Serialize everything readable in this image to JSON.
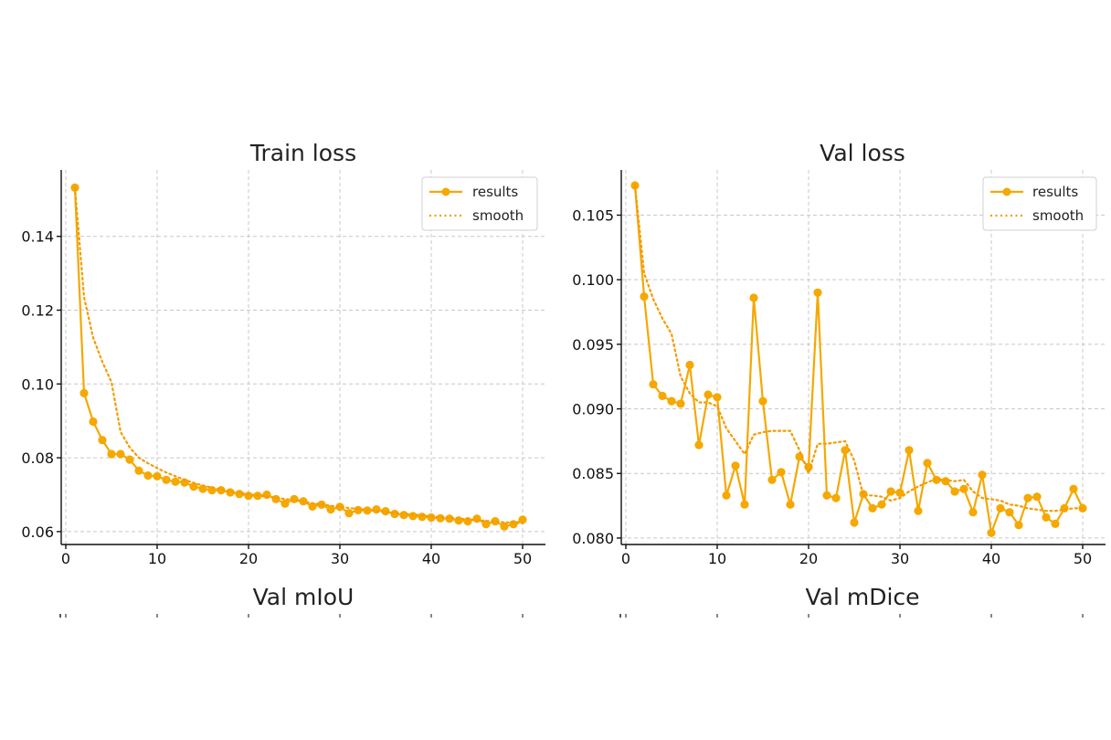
{
  "colors": {
    "series": "#f5a800",
    "smooth": "#f59b00"
  },
  "chart_data": [
    {
      "type": "line",
      "title": "Train loss",
      "xlabel": "",
      "ylabel": "",
      "xlim": [
        -0.5,
        52.5
      ],
      "ylim": [
        0.0565,
        0.158
      ],
      "xticks": [
        0,
        10,
        20,
        30,
        40,
        50
      ],
      "yticks": [
        0.06,
        0.08,
        0.1,
        0.12,
        0.14
      ],
      "ytick_labels": [
        "0.06",
        "0.08",
        "0.10",
        "0.12",
        "0.14"
      ],
      "grid": true,
      "legend_position": "top-right",
      "series": [
        {
          "name": "results",
          "style": "line+markers",
          "x": [
            1,
            2,
            3,
            4,
            5,
            6,
            7,
            8,
            9,
            10,
            11,
            12,
            13,
            14,
            15,
            16,
            17,
            18,
            19,
            20,
            21,
            22,
            23,
            24,
            25,
            26,
            27,
            28,
            29,
            30,
            31,
            32,
            33,
            34,
            35,
            36,
            37,
            38,
            39,
            40,
            41,
            42,
            43,
            44,
            45,
            46,
            47,
            48,
            49,
            50
          ],
          "values": [
            0.1532,
            0.0975,
            0.0898,
            0.0848,
            0.081,
            0.081,
            0.0795,
            0.0765,
            0.0752,
            0.075,
            0.074,
            0.0735,
            0.0733,
            0.0722,
            0.0716,
            0.0712,
            0.0712,
            0.0706,
            0.0702,
            0.0697,
            0.0697,
            0.07,
            0.0688,
            0.0676,
            0.0688,
            0.0682,
            0.0668,
            0.0673,
            0.066,
            0.0667,
            0.065,
            0.0658,
            0.0657,
            0.066,
            0.0655,
            0.0648,
            0.0645,
            0.0642,
            0.064,
            0.0638,
            0.0636,
            0.0635,
            0.063,
            0.0628,
            0.0635,
            0.062,
            0.0628,
            0.0614,
            0.062,
            0.0632
          ]
        },
        {
          "name": "smooth",
          "style": "dotted",
          "x": [
            1,
            2,
            3,
            4,
            5,
            6,
            7,
            8,
            9,
            10,
            11,
            12,
            13,
            14,
            15,
            16,
            17,
            18,
            19,
            20,
            21,
            22,
            23,
            24,
            25,
            26,
            27,
            28,
            29,
            30,
            31,
            32,
            33,
            34,
            35,
            36,
            37,
            38,
            39,
            40,
            41,
            42,
            43,
            44,
            45,
            46,
            47,
            48,
            49,
            50
          ],
          "values": [
            0.1532,
            0.1235,
            0.1125,
            0.106,
            0.1005,
            0.087,
            0.0828,
            0.08,
            0.0785,
            0.0772,
            0.076,
            0.075,
            0.074,
            0.0732,
            0.0725,
            0.0719,
            0.0714,
            0.0709,
            0.0705,
            0.0701,
            0.0698,
            0.0695,
            0.0692,
            0.0688,
            0.0685,
            0.0681,
            0.0677,
            0.0674,
            0.067,
            0.0667,
            0.0664,
            0.0661,
            0.0658,
            0.0656,
            0.0653,
            0.0651,
            0.0648,
            0.0646,
            0.0644,
            0.0641,
            0.0639,
            0.0637,
            0.0635,
            0.0633,
            0.0631,
            0.0629,
            0.0627,
            0.0625,
            0.0624,
            0.0623
          ]
        }
      ]
    },
    {
      "type": "line",
      "title": "Val loss",
      "xlabel": "",
      "ylabel": "",
      "xlim": [
        -0.5,
        52.5
      ],
      "ylim": [
        0.0795,
        0.1085
      ],
      "xticks": [
        0,
        10,
        20,
        30,
        40,
        50
      ],
      "yticks": [
        0.08,
        0.085,
        0.09,
        0.095,
        0.1,
        0.105
      ],
      "ytick_labels": [
        "0.080",
        "0.085",
        "0.090",
        "0.095",
        "0.100",
        "0.105"
      ],
      "grid": true,
      "legend_position": "top-right",
      "series": [
        {
          "name": "results",
          "style": "line+markers",
          "x": [
            1,
            2,
            3,
            4,
            5,
            6,
            7,
            8,
            9,
            10,
            11,
            12,
            13,
            14,
            15,
            16,
            17,
            18,
            19,
            20,
            21,
            22,
            23,
            24,
            25,
            26,
            27,
            28,
            29,
            30,
            31,
            32,
            33,
            34,
            35,
            36,
            37,
            38,
            39,
            40,
            41,
            42,
            43,
            44,
            45,
            46,
            47,
            48,
            49,
            50
          ],
          "values": [
            0.1073,
            0.0987,
            0.0919,
            0.091,
            0.0906,
            0.0904,
            0.0934,
            0.0872,
            0.0911,
            0.0909,
            0.0833,
            0.0856,
            0.0826,
            0.0986,
            0.0906,
            0.0845,
            0.0851,
            0.0826,
            0.0863,
            0.0855,
            0.099,
            0.0833,
            0.0831,
            0.0868,
            0.0812,
            0.0834,
            0.0823,
            0.0826,
            0.0836,
            0.0835,
            0.0868,
            0.0821,
            0.0858,
            0.0845,
            0.0844,
            0.0836,
            0.0838,
            0.082,
            0.0849,
            0.0804,
            0.0823,
            0.082,
            0.081,
            0.0831,
            0.0832,
            0.0816,
            0.0811,
            0.0823,
            0.0838,
            0.0823
          ]
        },
        {
          "name": "smooth",
          "style": "dotted",
          "x": [
            1,
            2,
            3,
            4,
            5,
            6,
            7,
            8,
            9,
            10,
            11,
            12,
            13,
            14,
            15,
            16,
            17,
            18,
            19,
            20,
            21,
            22,
            23,
            24,
            25,
            26,
            27,
            28,
            29,
            30,
            31,
            32,
            33,
            34,
            35,
            36,
            37,
            38,
            39,
            40,
            41,
            42,
            43,
            44,
            45,
            46,
            47,
            48,
            49,
            50
          ],
          "values": [
            0.1073,
            0.1005,
            0.0985,
            0.097,
            0.0958,
            0.0925,
            0.0912,
            0.0905,
            0.0905,
            0.0902,
            0.0885,
            0.0875,
            0.0865,
            0.088,
            0.0882,
            0.0883,
            0.0883,
            0.0883,
            0.0868,
            0.085,
            0.0873,
            0.0873,
            0.0874,
            0.0875,
            0.086,
            0.0833,
            0.0833,
            0.0832,
            0.0829,
            0.0831,
            0.0836,
            0.084,
            0.0843,
            0.0846,
            0.0845,
            0.0844,
            0.0845,
            0.0836,
            0.0831,
            0.083,
            0.0829,
            0.0826,
            0.0825,
            0.0823,
            0.0822,
            0.0821,
            0.0821,
            0.0822,
            0.0823,
            0.0823
          ]
        }
      ]
    }
  ],
  "charts": [
    {
      "title": "Train loss",
      "below_label": "Val mIoU",
      "legend": {
        "results": "results",
        "smooth": "smooth"
      }
    },
    {
      "title": "Val loss",
      "below_label": "Val mDice",
      "legend": {
        "results": "results",
        "smooth": "smooth"
      }
    }
  ]
}
